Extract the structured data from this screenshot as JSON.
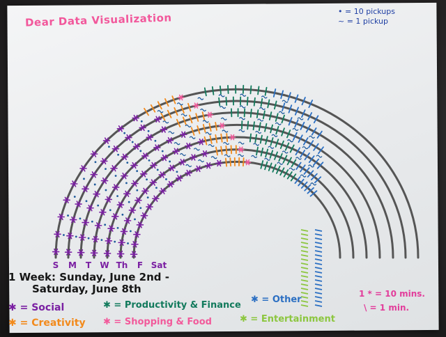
{
  "title": "Dear Data Visualization",
  "key_top": {
    "dot": "• = 10 pickups",
    "tilde": "~ = 1 pickup"
  },
  "days": [
    "S",
    "M",
    "T",
    "W",
    "Th",
    "F",
    "Sat"
  ],
  "week_line1": "1 Week: Sunday, June 2nd -",
  "week_line2": "Saturday, June 8th",
  "legend": {
    "social": "= Social",
    "creativity": "= Creativity",
    "productivity": "= Productivity & Finance",
    "shopping": "= Shopping & Food",
    "other": "= Other",
    "entertainment": "= Entertainment"
  },
  "time_key": {
    "ten": "1 * = 10 mins.",
    "one": "\\ = 1 min."
  },
  "colors": {
    "social": "#7a1fa2",
    "creativity": "#f28a1c",
    "productivity": "#127a5c",
    "shopping": "#f25a9b",
    "other": "#2b6fc2",
    "entertainment": "#8cc63f",
    "arc": "#555555",
    "pickup": "#1d5a9c",
    "title": "#f2579b"
  }
}
